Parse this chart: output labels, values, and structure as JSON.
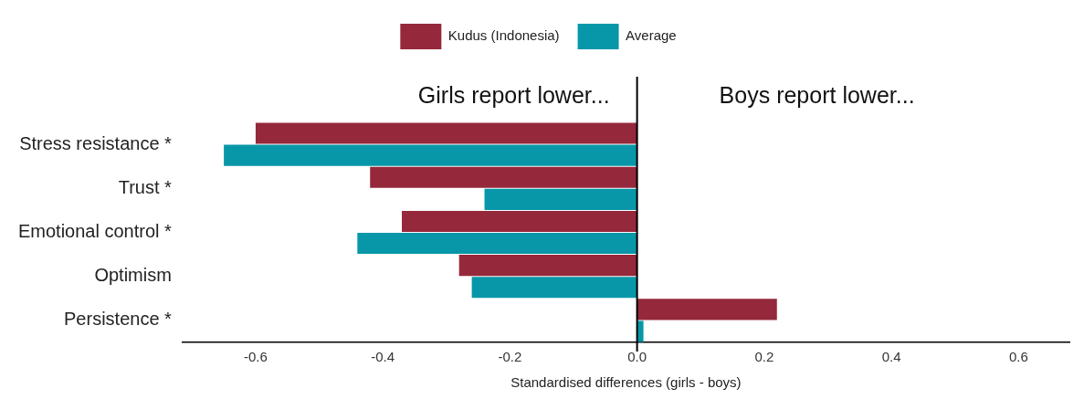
{
  "chart_data": {
    "type": "bar",
    "orientation": "horizontal",
    "xlabel": "Standardised differences (girls - boys)",
    "categories": [
      "Stress resistance *",
      "Trust *",
      "Emotional control *",
      "Optimism",
      "Persistence *"
    ],
    "series": [
      {
        "name": "Kudus (Indonesia)",
        "color": "#95283b",
        "values": [
          -0.6,
          -0.42,
          -0.37,
          -0.28,
          0.22
        ]
      },
      {
        "name": "Average",
        "color": "#0797a8",
        "values": [
          -0.65,
          -0.24,
          -0.44,
          -0.26,
          0.01
        ]
      }
    ],
    "xlim": [
      -0.715,
      0.68
    ],
    "xticks": [
      -0.6,
      -0.4,
      -0.2,
      {
        "value": 0,
        "label": "0.0"
      },
      0.2,
      0.4,
      0.6
    ],
    "ref_lines": [
      {
        "axis": "x",
        "value": 0,
        "color": "#000000"
      }
    ],
    "annotations": [
      "Girls report lower...",
      "Boys report lower..."
    ],
    "legend": "top",
    "grid": false
  }
}
